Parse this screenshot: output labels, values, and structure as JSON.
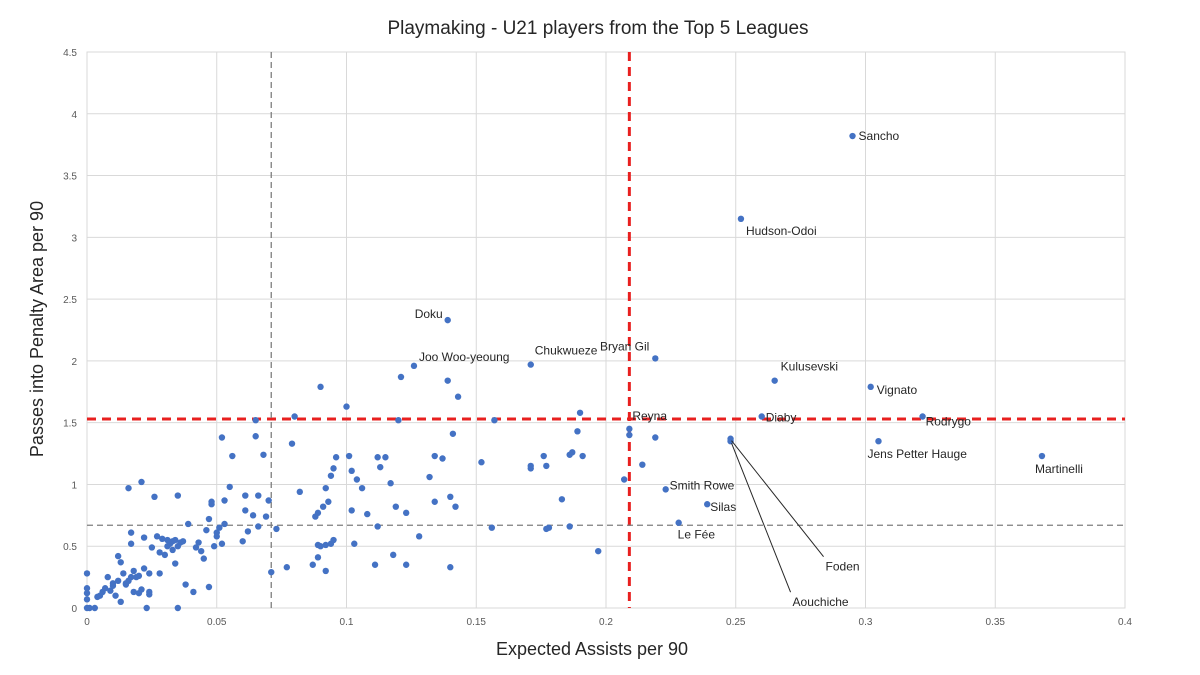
{
  "chart_data": {
    "type": "scatter",
    "title": "Playmaking - U21 players from the Top 5 Leagues",
    "xlabel": "Expected Assists per 90",
    "ylabel": "Passes into Penalty Area per 90",
    "xlim": [
      0,
      0.4
    ],
    "ylim": [
      0,
      4.5
    ],
    "xticks": [
      "0",
      "0.05",
      "0.1",
      "0.15",
      "0.2",
      "0.25",
      "0.3",
      "0.35",
      "0.4"
    ],
    "yticks": [
      "0",
      "0.5",
      "1",
      "1.5",
      "2",
      "2.5",
      "3",
      "3.5",
      "4",
      "4.5"
    ],
    "grid": true,
    "marker_color": "#4472c4",
    "reference_lines": [
      {
        "axis": "x",
        "value": 0.209,
        "style": "dashed",
        "color": "#e8201f",
        "weight": "bold"
      },
      {
        "axis": "y",
        "value": 1.53,
        "style": "dashed",
        "color": "#e8201f",
        "weight": "bold"
      },
      {
        "axis": "x",
        "value": 0.071,
        "style": "dashed",
        "color": "#7f7f7f",
        "weight": "thin"
      },
      {
        "axis": "y",
        "value": 0.67,
        "style": "dashed",
        "color": "#7f7f7f",
        "weight": "thin"
      }
    ],
    "labeled_points": [
      {
        "label": "Sancho",
        "x": 0.295,
        "y": 3.82
      },
      {
        "label": "Hudson-Odoi",
        "x": 0.252,
        "y": 3.15
      },
      {
        "label": "Doku",
        "x": 0.139,
        "y": 2.33
      },
      {
        "label": "Joo Woo-yeoung",
        "x": 0.126,
        "y": 1.96
      },
      {
        "label": "Chukwueze",
        "x": 0.171,
        "y": 1.97
      },
      {
        "label": "Bryan Gil",
        "x": 0.219,
        "y": 2.02
      },
      {
        "label": "Kulusevski",
        "x": 0.265,
        "y": 1.84
      },
      {
        "label": "Vignato",
        "x": 0.302,
        "y": 1.79
      },
      {
        "label": "Reyna",
        "x": 0.209,
        "y": 1.45
      },
      {
        "label": "Diaby",
        "x": 0.26,
        "y": 1.55
      },
      {
        "label": "Rodrygo",
        "x": 0.322,
        "y": 1.55
      },
      {
        "label": "Jens Petter Hauge",
        "x": 0.305,
        "y": 1.35
      },
      {
        "label": "Martinelli",
        "x": 0.368,
        "y": 1.23
      },
      {
        "label": "Smith Rowe",
        "x": 0.223,
        "y": 0.96
      },
      {
        "label": "Silas",
        "x": 0.239,
        "y": 0.84
      },
      {
        "label": "Le Fée",
        "x": 0.228,
        "y": 0.69
      },
      {
        "label": "Foden",
        "x": 0.248,
        "y": 1.37
      },
      {
        "label": "Aouchiche",
        "x": 0.248,
        "y": 1.35
      }
    ],
    "points": [
      [
        0.0,
        0.0
      ],
      [
        0.0,
        0.07
      ],
      [
        0.0,
        0.12
      ],
      [
        0.0,
        0.16
      ],
      [
        0.0,
        0.28
      ],
      [
        0.001,
        0.0
      ],
      [
        0.003,
        0.0
      ],
      [
        0.004,
        0.09
      ],
      [
        0.005,
        0.1
      ],
      [
        0.006,
        0.13
      ],
      [
        0.007,
        0.16
      ],
      [
        0.008,
        0.25
      ],
      [
        0.009,
        0.14
      ],
      [
        0.01,
        0.18
      ],
      [
        0.01,
        0.2
      ],
      [
        0.011,
        0.1
      ],
      [
        0.012,
        0.22
      ],
      [
        0.012,
        0.42
      ],
      [
        0.013,
        0.37
      ],
      [
        0.013,
        0.05
      ],
      [
        0.014,
        0.28
      ],
      [
        0.015,
        0.19
      ],
      [
        0.015,
        0.2
      ],
      [
        0.016,
        0.22
      ],
      [
        0.016,
        0.97
      ],
      [
        0.017,
        0.25
      ],
      [
        0.017,
        0.61
      ],
      [
        0.017,
        0.52
      ],
      [
        0.018,
        0.3
      ],
      [
        0.018,
        0.13
      ],
      [
        0.019,
        0.25
      ],
      [
        0.02,
        0.26
      ],
      [
        0.02,
        0.12
      ],
      [
        0.021,
        1.02
      ],
      [
        0.021,
        0.15
      ],
      [
        0.022,
        0.57
      ],
      [
        0.022,
        0.32
      ],
      [
        0.023,
        0.0
      ],
      [
        0.024,
        0.13
      ],
      [
        0.024,
        0.11
      ],
      [
        0.024,
        0.28
      ],
      [
        0.025,
        0.49
      ],
      [
        0.026,
        0.9
      ],
      [
        0.027,
        0.58
      ],
      [
        0.028,
        0.28
      ],
      [
        0.028,
        0.45
      ],
      [
        0.029,
        0.56
      ],
      [
        0.03,
        0.43
      ],
      [
        0.031,
        0.5
      ],
      [
        0.031,
        0.55
      ],
      [
        0.032,
        0.52
      ],
      [
        0.033,
        0.47
      ],
      [
        0.033,
        0.54
      ],
      [
        0.034,
        0.55
      ],
      [
        0.034,
        0.36
      ],
      [
        0.035,
        0.5
      ],
      [
        0.035,
        0.0
      ],
      [
        0.035,
        0.91
      ],
      [
        0.036,
        0.53
      ],
      [
        0.037,
        0.54
      ],
      [
        0.038,
        0.19
      ],
      [
        0.039,
        0.68
      ],
      [
        0.041,
        0.13
      ],
      [
        0.042,
        0.49
      ],
      [
        0.043,
        0.53
      ],
      [
        0.044,
        0.46
      ],
      [
        0.045,
        0.4
      ],
      [
        0.046,
        0.63
      ],
      [
        0.047,
        0.17
      ],
      [
        0.047,
        0.72
      ],
      [
        0.048,
        0.84
      ],
      [
        0.048,
        0.86
      ],
      [
        0.049,
        0.5
      ],
      [
        0.05,
        0.58
      ],
      [
        0.05,
        0.61
      ],
      [
        0.051,
        0.65
      ],
      [
        0.052,
        1.38
      ],
      [
        0.052,
        0.52
      ],
      [
        0.053,
        0.68
      ],
      [
        0.053,
        0.87
      ],
      [
        0.055,
        0.98
      ],
      [
        0.056,
        1.23
      ],
      [
        0.06,
        0.54
      ],
      [
        0.061,
        0.79
      ],
      [
        0.061,
        0.91
      ],
      [
        0.062,
        0.62
      ],
      [
        0.064,
        0.75
      ],
      [
        0.065,
        1.39
      ],
      [
        0.065,
        1.52
      ],
      [
        0.066,
        0.66
      ],
      [
        0.066,
        0.91
      ],
      [
        0.068,
        1.24
      ],
      [
        0.069,
        0.74
      ],
      [
        0.07,
        0.87
      ],
      [
        0.071,
        0.29
      ],
      [
        0.073,
        0.64
      ],
      [
        0.077,
        0.33
      ],
      [
        0.079,
        1.33
      ],
      [
        0.08,
        1.55
      ],
      [
        0.082,
        0.94
      ],
      [
        0.087,
        0.35
      ],
      [
        0.088,
        0.74
      ],
      [
        0.089,
        0.41
      ],
      [
        0.089,
        0.51
      ],
      [
        0.089,
        0.77
      ],
      [
        0.09,
        1.79
      ],
      [
        0.09,
        0.5
      ],
      [
        0.091,
        0.82
      ],
      [
        0.092,
        0.97
      ],
      [
        0.092,
        0.51
      ],
      [
        0.092,
        0.3
      ],
      [
        0.093,
        0.86
      ],
      [
        0.094,
        1.07
      ],
      [
        0.094,
        0.52
      ],
      [
        0.095,
        1.13
      ],
      [
        0.095,
        0.55
      ],
      [
        0.096,
        1.22
      ],
      [
        0.1,
        1.63
      ],
      [
        0.101,
        1.23
      ],
      [
        0.102,
        1.11
      ],
      [
        0.102,
        0.79
      ],
      [
        0.103,
        0.52
      ],
      [
        0.104,
        1.04
      ],
      [
        0.106,
        0.97
      ],
      [
        0.108,
        0.76
      ],
      [
        0.111,
        0.35
      ],
      [
        0.112,
        1.22
      ],
      [
        0.112,
        0.66
      ],
      [
        0.113,
        1.14
      ],
      [
        0.115,
        1.22
      ],
      [
        0.117,
        1.01
      ],
      [
        0.118,
        0.43
      ],
      [
        0.119,
        0.82
      ],
      [
        0.12,
        1.52
      ],
      [
        0.121,
        1.87
      ],
      [
        0.123,
        0.77
      ],
      [
        0.123,
        0.35
      ],
      [
        0.128,
        0.58
      ],
      [
        0.132,
        1.06
      ],
      [
        0.134,
        1.23
      ],
      [
        0.134,
        0.86
      ],
      [
        0.137,
        1.21
      ],
      [
        0.139,
        1.84
      ],
      [
        0.14,
        0.9
      ],
      [
        0.14,
        0.33
      ],
      [
        0.141,
        1.41
      ],
      [
        0.142,
        0.82
      ],
      [
        0.143,
        1.71
      ],
      [
        0.152,
        1.18
      ],
      [
        0.156,
        0.65
      ],
      [
        0.157,
        1.52
      ],
      [
        0.171,
        1.13
      ],
      [
        0.171,
        1.15
      ],
      [
        0.176,
        1.23
      ],
      [
        0.177,
        1.15
      ],
      [
        0.177,
        0.64
      ],
      [
        0.178,
        0.65
      ],
      [
        0.183,
        0.88
      ],
      [
        0.186,
        1.24
      ],
      [
        0.186,
        0.66
      ],
      [
        0.187,
        1.26
      ],
      [
        0.189,
        1.43
      ],
      [
        0.19,
        1.58
      ],
      [
        0.191,
        1.23
      ],
      [
        0.197,
        0.46
      ],
      [
        0.207,
        1.04
      ],
      [
        0.209,
        1.4
      ],
      [
        0.214,
        1.16
      ],
      [
        0.219,
        1.38
      ]
    ]
  }
}
